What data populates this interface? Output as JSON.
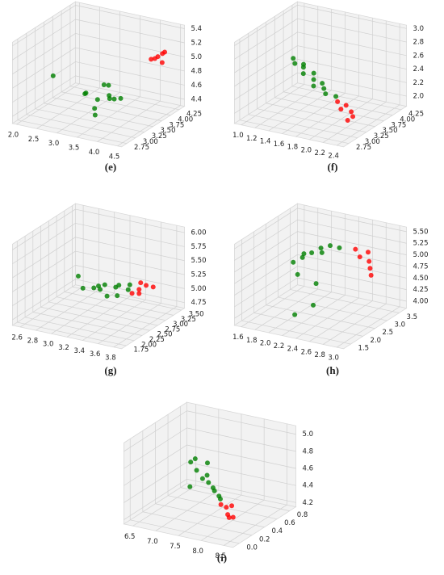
{
  "chart_data": [
    {
      "type": "scatter3d",
      "label": "(e)",
      "xlim": [
        1.9,
        4.6
      ],
      "ylim": [
        2.6,
        4.4
      ],
      "zlim": [
        4.3,
        5.45
      ],
      "xticks": [
        {
          "value": 2,
          "label": "2.0"
        },
        2.5,
        {
          "value": 3,
          "label": "3.0"
        },
        3.5,
        {
          "value": 4,
          "label": "4.0"
        },
        4.5
      ],
      "yticks": [
        2.75,
        {
          "value": 3,
          "label": "3.00"
        },
        3.25,
        {
          "value": 3.5,
          "label": "3.50"
        },
        3.75,
        {
          "value": 4,
          "label": "4.00"
        },
        4.25
      ],
      "zticks": [
        4.4,
        4.6,
        4.8,
        {
          "value": 5,
          "label": "5.0"
        },
        5.2,
        5.4
      ],
      "series": [
        {
          "color": "#008000",
          "x": [
            3.4,
            3.6,
            3.2,
            3.8,
            3.5,
            3.3,
            3.7,
            3.0,
            3.9,
            3.5,
            2.3,
            3.6
          ],
          "y": [
            3.3,
            3.4,
            3.2,
            3.5,
            3.1,
            3.6,
            3.3,
            3.4,
            3.2,
            3.5,
            3.3,
            3.0
          ],
          "z": [
            4.6,
            4.65,
            4.7,
            4.6,
            4.55,
            4.7,
            4.65,
            4.6,
            4.7,
            4.75,
            4.8,
            4.5
          ]
        },
        {
          "color": "#ff0000",
          "x": [
            4.3,
            4.4,
            4.2,
            4.5,
            4.35,
            4.25
          ],
          "y": [
            3.9,
            4.0,
            4.1,
            3.95,
            4.05,
            3.85
          ],
          "z": [
            5.1,
            5.15,
            5.05,
            5.2,
            5.0,
            5.1
          ]
        }
      ]
    },
    {
      "type": "scatter3d",
      "label": "(f)",
      "xlim": [
        0.9,
        2.5
      ],
      "ylim": [
        2.6,
        4.4
      ],
      "zlim": [
        1.85,
        3.05
      ],
      "xticks": [
        {
          "value": 1,
          "label": "1.0"
        },
        1.2,
        1.4,
        1.6,
        1.8,
        {
          "value": 2,
          "label": "2.0"
        },
        2.2,
        2.4
      ],
      "yticks": [
        2.75,
        {
          "value": 3,
          "label": "3.00"
        },
        3.25,
        {
          "value": 3.5,
          "label": "3.50"
        },
        3.75,
        {
          "value": 4,
          "label": "4.00"
        },
        4.25
      ],
      "zticks": [
        {
          "value": 2,
          "label": "2.0"
        },
        2.2,
        2.4,
        2.6,
        2.8,
        {
          "value": 3,
          "label": "3.0"
        }
      ],
      "series": [
        {
          "color": "#008000",
          "x": [
            1.3,
            1.4,
            1.5,
            1.6,
            1.7,
            1.8,
            1.45,
            1.55,
            1.65,
            1.75,
            1.9,
            1.35
          ],
          "y": [
            3.5,
            3.6,
            3.4,
            3.5,
            3.55,
            3.45,
            3.5,
            3.6,
            3.4,
            3.5,
            3.55,
            3.45
          ],
          "z": [
            2.6,
            2.5,
            2.45,
            2.35,
            2.3,
            2.2,
            2.5,
            2.4,
            2.3,
            2.25,
            2.15,
            2.55
          ]
        },
        {
          "color": "#ff0000",
          "x": [
            2.0,
            2.1,
            2.15,
            2.05,
            2.2,
            1.95
          ],
          "y": [
            3.5,
            3.6,
            3.4,
            3.55,
            3.45,
            3.5
          ],
          "z": [
            2.0,
            1.95,
            1.9,
            2.05,
            1.95,
            2.1
          ]
        }
      ]
    },
    {
      "type": "scatter3d",
      "label": "(g)",
      "xlim": [
        2.5,
        3.9
      ],
      "ylim": [
        1.6,
        3.6
      ],
      "zlim": [
        4.65,
        6.1
      ],
      "xticks": [
        2.6,
        2.8,
        {
          "value": 3,
          "label": "3.0"
        },
        3.2,
        3.4,
        3.6,
        3.8
      ],
      "yticks": [
        1.75,
        {
          "value": 2,
          "label": "2.00"
        },
        2.25,
        {
          "value": 2.5,
          "label": "2.50"
        },
        2.75,
        {
          "value": 3,
          "label": "3.00"
        },
        3.25,
        {
          "value": 3.5,
          "label": "3.50"
        }
      ],
      "zticks": [
        4.75,
        {
          "value": 5,
          "label": "5.00"
        },
        5.25,
        {
          "value": 5.5,
          "label": "5.50"
        },
        5.75,
        {
          "value": 6,
          "label": "6.00"
        }
      ],
      "series": [
        {
          "color": "#008000",
          "x": [
            3.0,
            3.1,
            3.2,
            3.3,
            3.4,
            3.2,
            3.3,
            3.5,
            2.9,
            3.4,
            3.1,
            3.35
          ],
          "y": [
            2.6,
            2.7,
            2.8,
            2.9,
            2.7,
            2.6,
            3.0,
            2.8,
            2.7,
            3.1,
            2.9,
            2.5
          ],
          "z": [
            5.1,
            5.1,
            5.15,
            5.1,
            5.05,
            5.2,
            5.1,
            5.15,
            5.25,
            5.1,
            5.0,
            5.1
          ]
        },
        {
          "color": "#ff0000",
          "x": [
            3.6,
            3.65,
            3.55,
            3.7,
            3.6,
            3.62
          ],
          "y": [
            2.9,
            3.0,
            2.8,
            3.1,
            2.95,
            2.85
          ],
          "z": [
            5.15,
            5.2,
            5.1,
            5.15,
            5.25,
            5.1
          ]
        }
      ]
    },
    {
      "type": "scatter3d",
      "label": "(h)",
      "xlim": [
        1.5,
        3.1
      ],
      "ylim": [
        1.2,
        3.8
      ],
      "zlim": [
        3.85,
        5.6
      ],
      "xticks": [
        1.6,
        1.8,
        {
          "value": 2,
          "label": "2.0"
        },
        2.2,
        2.4,
        2.6,
        2.8,
        {
          "value": 3,
          "label": "3.0"
        }
      ],
      "yticks": [
        1.5,
        {
          "value": 2,
          "label": "2.0"
        },
        2.5,
        {
          "value": 3,
          "label": "3.0"
        },
        3.5
      ],
      "zticks": [
        {
          "value": 4,
          "label": "4.00"
        },
        4.25,
        {
          "value": 4.5,
          "label": "4.50"
        },
        4.75,
        {
          "value": 5,
          "label": "5.00"
        },
        5.25,
        {
          "value": 5.5,
          "label": "5.50"
        }
      ],
      "series": [
        {
          "color": "#008000",
          "x": [
            1.9,
            2.0,
            2.1,
            2.2,
            2.3,
            2.4,
            2.0,
            2.2,
            2.3,
            2.1,
            1.95,
            2.25
          ],
          "y": [
            2.5,
            2.6,
            2.7,
            2.8,
            2.9,
            3.0,
            2.4,
            2.6,
            2.2,
            2.0,
            2.8,
            2.7
          ],
          "z": [
            4.9,
            5.0,
            5.1,
            5.2,
            5.25,
            5.2,
            4.7,
            4.5,
            4.2,
            4.0,
            5.0,
            5.15
          ]
        },
        {
          "color": "#ff0000",
          "x": [
            2.7,
            2.8,
            2.9,
            2.75,
            2.85,
            2.6
          ],
          "y": [
            3.0,
            3.1,
            2.9,
            3.2,
            3.0,
            3.1
          ],
          "z": [
            5.1,
            5.0,
            4.8,
            5.15,
            4.9,
            5.2
          ]
        }
      ]
    },
    {
      "type": "scatter3d",
      "label": "(i)",
      "xlim": [
        6.3,
        8.7
      ],
      "ylim": [
        -0.1,
        0.9
      ],
      "zlim": [
        4.15,
        5.1
      ],
      "xticks": [
        6.5,
        {
          "value": 7,
          "label": "7.0"
        },
        7.5,
        {
          "value": 8,
          "label": "8.0"
        },
        8.5
      ],
      "yticks": [
        {
          "value": 0,
          "label": "0.0"
        },
        0.2,
        0.4,
        0.6,
        0.8
      ],
      "zticks": [
        4.2,
        4.4,
        4.6,
        4.8,
        {
          "value": 5,
          "label": "5.0"
        }
      ],
      "series": [
        {
          "color": "#008000",
          "x": [
            6.8,
            7.0,
            7.2,
            7.4,
            7.6,
            7.8,
            7.1,
            7.3,
            7.5,
            6.9,
            7.7,
            7.2
          ],
          "y": [
            0.6,
            0.55,
            0.5,
            0.45,
            0.4,
            0.35,
            0.65,
            0.5,
            0.45,
            0.6,
            0.4,
            0.3
          ],
          "z": [
            4.6,
            4.55,
            4.5,
            4.5,
            4.45,
            4.4,
            4.6,
            4.55,
            4.45,
            4.65,
            4.4,
            4.5
          ]
        },
        {
          "color": "#ff0000",
          "x": [
            8.0,
            8.1,
            8.2,
            8.05,
            8.15,
            7.95
          ],
          "y": [
            0.3,
            0.25,
            0.2,
            0.35,
            0.3,
            0.25
          ],
          "z": [
            4.35,
            4.3,
            4.3,
            4.35,
            4.25,
            4.4
          ]
        }
      ]
    }
  ]
}
